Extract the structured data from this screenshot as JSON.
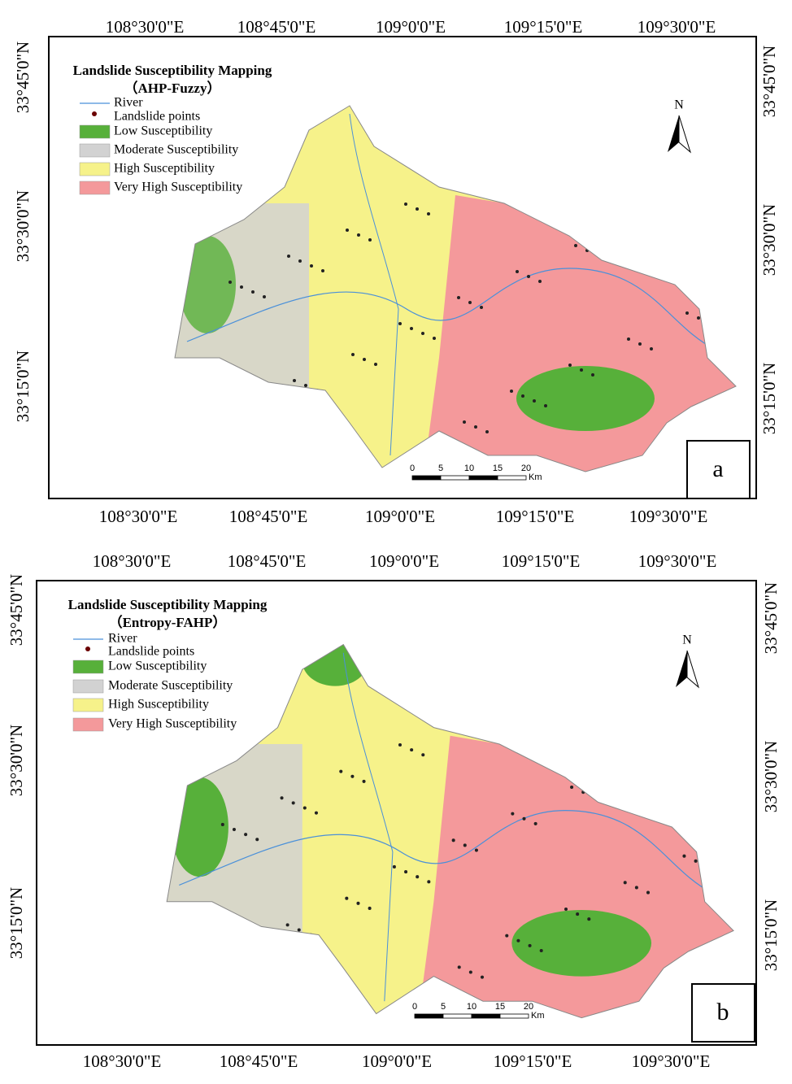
{
  "panels": [
    {
      "title": "Landslide Susceptibility Mapping",
      "subtitle": "（AHP-Fuzzy）",
      "legend": [
        "River",
        "Landslide points",
        "Low Susceptibility",
        "Moderate Susceptibility",
        "High Susceptibility",
        "Very High Susceptibility"
      ],
      "top_labels": [
        "108°30'0\"E",
        "108°45'0\"E",
        "109°0'0\"E",
        "109°15'0\"E",
        "109°30'0\"E"
      ],
      "bottom_labels": [
        "108°30'0\"E",
        "108°45'0\"E",
        "109°0'0\"E",
        "109°15'0\"E",
        "109°30'0\"E"
      ],
      "left_labels": [
        "33°45'0\"N",
        "33°30'0\"N",
        "33°15'0\"N"
      ],
      "right_labels": [
        "33°45'0\"N",
        "33°30'0\"N",
        "33°15'0\"N"
      ],
      "north": "N",
      "scale": [
        "0",
        "5",
        "10",
        "15",
        "20"
      ],
      "scale_unit": "Km",
      "letter": "a"
    },
    {
      "title": "Landslide Susceptibility Mapping",
      "subtitle": "（Entropy-FAHP）",
      "legend": [
        "River",
        "Landslide points",
        "Low Susceptibility",
        "Moderate Susceptibility",
        "High Susceptibility",
        "Very High Susceptibility"
      ],
      "top_labels": [
        "108°30'0\"E",
        "108°45'0\"E",
        "109°0'0\"E",
        "109°15'0\"E",
        "109°30'0\"E"
      ],
      "bottom_labels": [
        "108°30'0\"E",
        "108°45'0\"E",
        "109°0'0\"E",
        "109°15'0\"E",
        "109°30'0\"E"
      ],
      "left_labels": [
        "33°45'0\"N",
        "33°30'0\"N",
        "33°15'0\"N"
      ],
      "right_labels": [
        "33°45'0\"N",
        "33°30'0\"N",
        "33°15'0\"N"
      ],
      "north": "N",
      "scale": [
        "0",
        "5",
        "10",
        "15",
        "20"
      ],
      "scale_unit": "Km",
      "letter": "b"
    }
  ]
}
